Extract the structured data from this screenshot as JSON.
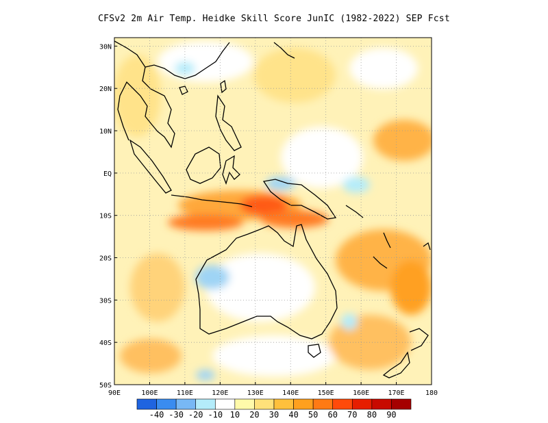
{
  "title": "CFSv2  2m Air Temp. Heidke Skill Score JunIC (1982-2022) SEP Fcst",
  "lat_ticks": [
    {
      "value": 30,
      "label": "30N"
    },
    {
      "value": 20,
      "label": "20N"
    },
    {
      "value": 10,
      "label": "10N"
    },
    {
      "value": 0,
      "label": "EQ"
    },
    {
      "value": -10,
      "label": "10S"
    },
    {
      "value": -20,
      "label": "20S"
    },
    {
      "value": -30,
      "label": "30S"
    },
    {
      "value": -40,
      "label": "40S"
    },
    {
      "value": -50,
      "label": "50S"
    }
  ],
  "lon_ticks": [
    {
      "value": 90,
      "label": "90E"
    },
    {
      "value": 100,
      "label": "100E"
    },
    {
      "value": 110,
      "label": "110E"
    },
    {
      "value": 120,
      "label": "120E"
    },
    {
      "value": 130,
      "label": "130E"
    },
    {
      "value": 140,
      "label": "140E"
    },
    {
      "value": 150,
      "label": "150E"
    },
    {
      "value": 160,
      "label": "160E"
    },
    {
      "value": 170,
      "label": "170E"
    },
    {
      "value": 180,
      "label": "180"
    }
  ],
  "map_extent": {
    "lon": [
      90,
      180
    ],
    "lat": [
      -50,
      32
    ]
  },
  "colorbar": {
    "colors": [
      "#1f64e0",
      "#3a8cf0",
      "#78b8f5",
      "#b4ecfa",
      "#ffffff",
      "#fffaaa",
      "#ffe17a",
      "#ffc03c",
      "#ffa01e",
      "#ff7a14",
      "#ff4a0a",
      "#e61e00",
      "#c80a00",
      "#a50000"
    ],
    "labels": [
      "-40",
      "-30",
      "-20",
      "-10",
      "10",
      "20",
      "30",
      "40",
      "50",
      "60",
      "70",
      "80",
      "90"
    ]
  }
}
